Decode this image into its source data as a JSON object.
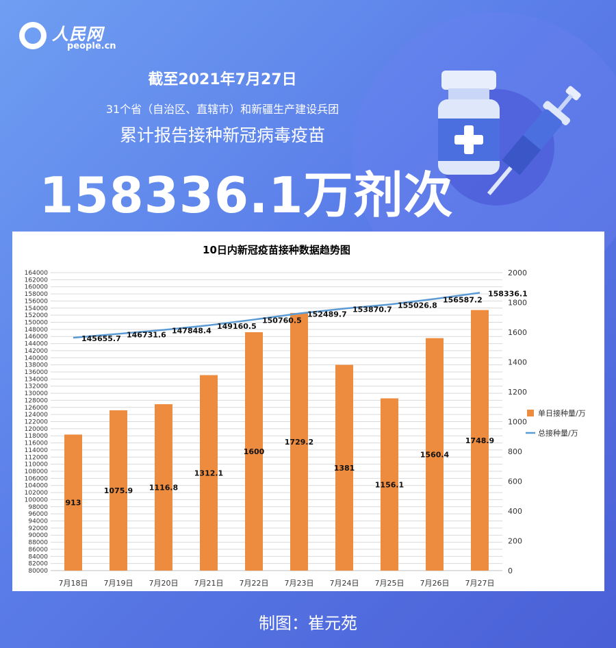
{
  "header": {
    "logo_text": "人民网",
    "logo_domain": "people.cn",
    "date_line": "截至2021年7月27日",
    "region_line": "31个省（自治区、直辖市）和新疆生产建设兵团",
    "report_line": "累计报告接种新冠病毒疫苗",
    "total_value": "158336.1万剂次"
  },
  "illustration": {
    "icons": [
      "vaccine-vial-icon",
      "syringe-icon"
    ]
  },
  "chart_data": {
    "type": "bar",
    "title": "10日内新冠疫苗接种数据趋势图",
    "categories": [
      "7月18日",
      "7月19日",
      "7月20日",
      "7月21日",
      "7月22日",
      "7月23日",
      "7月24日",
      "7月25日",
      "7月26日",
      "7月27日"
    ],
    "series": [
      {
        "name": "单日接种量/万",
        "type": "bar",
        "axis": "right",
        "color": "#ed8b3f",
        "values": [
          913,
          1075.9,
          1116.8,
          1312.1,
          1600,
          1729.2,
          1381,
          1156.1,
          1560.4,
          1748.9
        ],
        "labels": [
          "913",
          "1075.9",
          "1116.8",
          "1312.1",
          "1600",
          "1729.2",
          "1381",
          "1156.1",
          "1560.4",
          "1748.9"
        ]
      },
      {
        "name": "总接种量/万",
        "type": "line",
        "axis": "left",
        "color": "#5b9bd5",
        "values": [
          145655.7,
          146731.6,
          147848.4,
          149160.5,
          150760.5,
          152489.7,
          153870.7,
          155026.8,
          156587.2,
          158336.1
        ],
        "labels": [
          "145655.7",
          "146731.6",
          "147848.4",
          "149160.5",
          "150760.5",
          "152489.7",
          "153870.7",
          "155026.8",
          "156587.2",
          "158336.1"
        ]
      }
    ],
    "left_axis": {
      "min": 80000,
      "max": 164000,
      "step": 2000
    },
    "right_axis": {
      "min": 0,
      "max": 2000,
      "step": 200
    },
    "grid": true,
    "legend_position": "right"
  },
  "footer": {
    "credit": "制图：崔元苑"
  }
}
